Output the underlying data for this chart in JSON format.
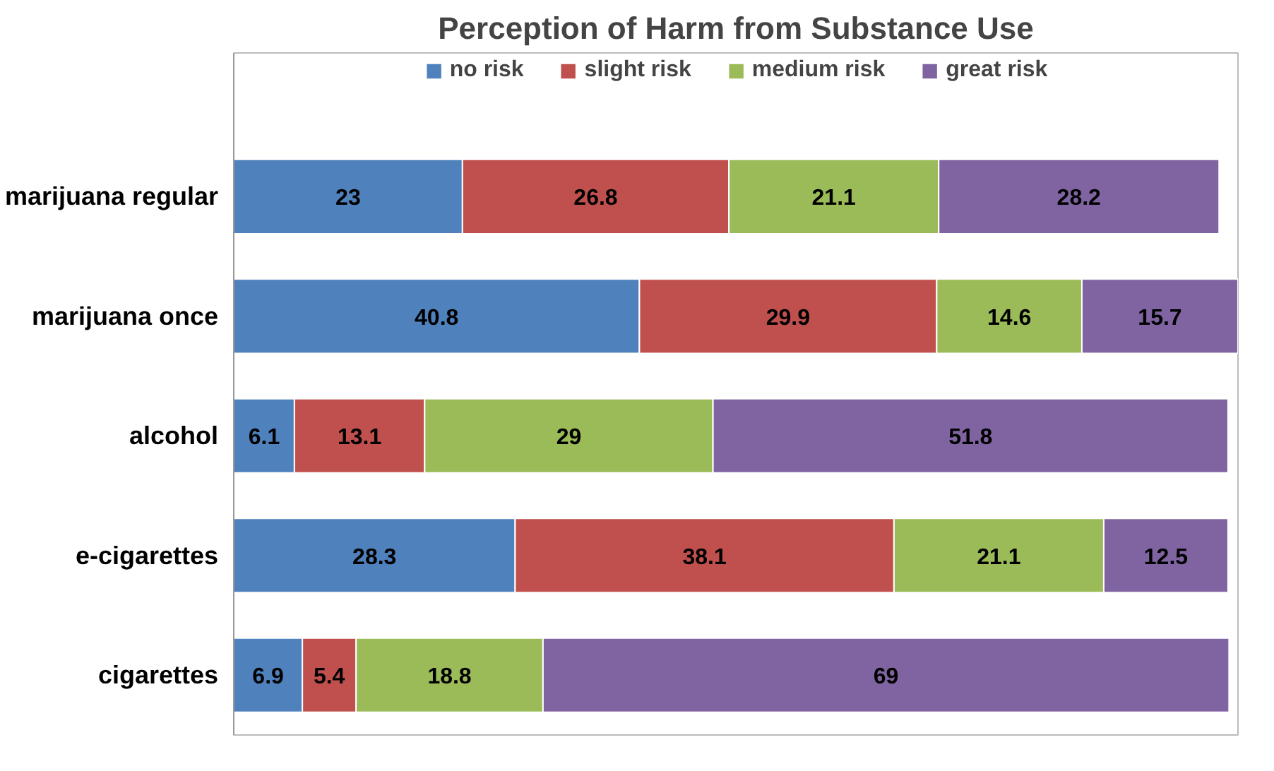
{
  "chart_data": {
    "type": "bar",
    "title": "Perception of Harm from Substance Use",
    "orientation": "horizontal",
    "stacked": true,
    "data_labels": true,
    "legend": "top",
    "grid": false,
    "tick_labels": "y",
    "xlim": [
      0,
      101
    ],
    "categories": [
      "marijuana regular",
      "marijuana once",
      "alcohol",
      "e-cigarettes",
      "cigarettes"
    ],
    "series": [
      {
        "name": "no risk",
        "color": "#4f81bd",
        "values": [
          23,
          40.8,
          6.1,
          28.3,
          6.9
        ]
      },
      {
        "name": "slight risk",
        "color": "#c0504d",
        "values": [
          26.8,
          29.9,
          13.1,
          38.1,
          5.4
        ]
      },
      {
        "name": "medium risk",
        "color": "#9bbb59",
        "values": [
          21.1,
          14.6,
          29,
          21.1,
          18.8
        ]
      },
      {
        "name": "great risk",
        "color": "#8064a2",
        "values": [
          28.2,
          15.7,
          51.8,
          12.5,
          69
        ]
      }
    ]
  }
}
